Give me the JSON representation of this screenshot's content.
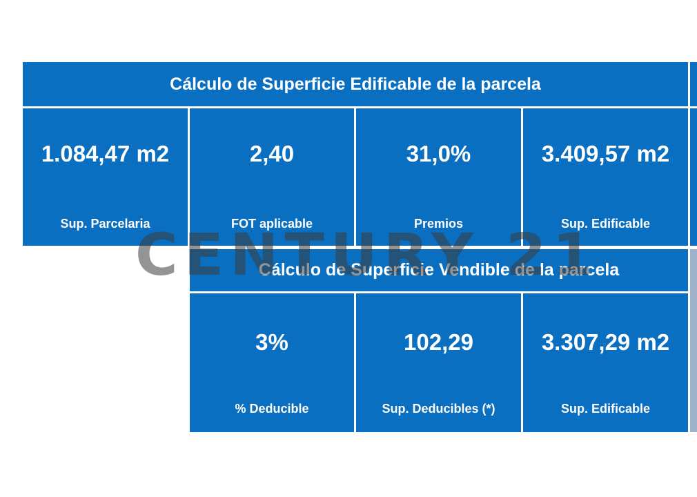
{
  "watermark": "CENTURY 21",
  "colors": {
    "panel_blue": "#0a6fc0",
    "background": "#ffffff"
  },
  "edificable": {
    "title": "Cálculo de Superficie Edificable de la parcela",
    "cells": [
      {
        "value": "1.084,47 m2",
        "label": "Sup. Parcelaria"
      },
      {
        "value": "2,40",
        "label": "FOT aplicable"
      },
      {
        "value": "31,0%",
        "label": "Premios"
      },
      {
        "value": "3.409,57 m2",
        "label": "Sup. Edificable"
      }
    ]
  },
  "vendible": {
    "title": "Cálculo de Superficie Vendible de la parcela",
    "cells": [
      {
        "value": "3%",
        "label": "% Deducible"
      },
      {
        "value": "102,29",
        "label": "Sup. Deducibles (*)"
      },
      {
        "value": "3.307,29 m2",
        "label": "Sup. Edificable"
      }
    ]
  }
}
